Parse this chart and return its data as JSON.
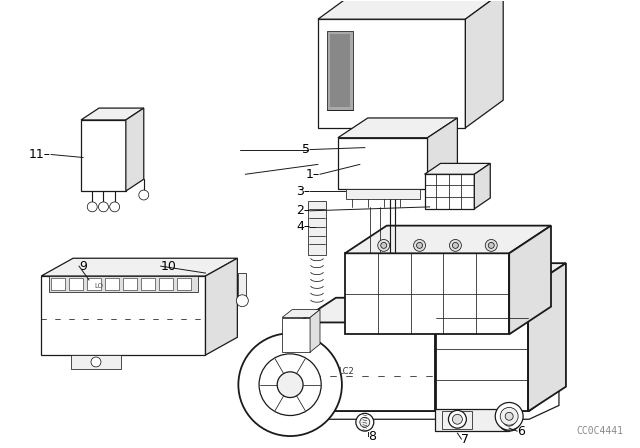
{
  "background_color": "#ffffff",
  "line_color": "#1a1a1a",
  "text_color": "#000000",
  "watermark": "CC0C4441",
  "figsize": [
    6.4,
    4.48
  ],
  "dpi": 100,
  "lw_main": 0.9,
  "lw_thin": 0.55,
  "lw_thick": 1.3,
  "font_size": 9,
  "font_size_wm": 7
}
